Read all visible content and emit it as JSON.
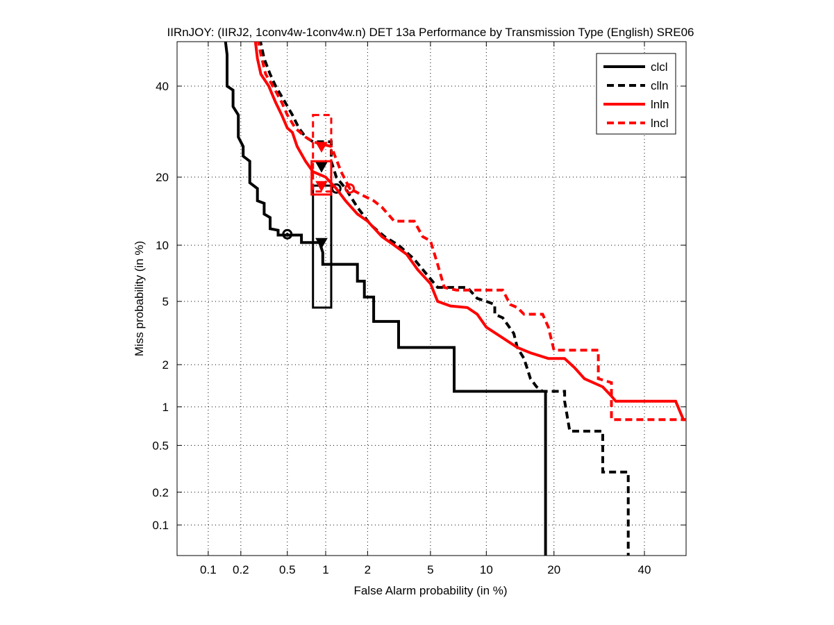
{
  "chart_data": {
    "type": "line",
    "title": "IIRnJOY: (IIRJ2, 1conv4w-1conv4w.n) DET 13a Performance by Transmission Type (English) SRE06",
    "xlabel": "False Alarm probability (in %)",
    "ylabel": "Miss probability (in %)",
    "scale": "normal-deviate (probit)",
    "xlim": [
      0.05,
      55
    ],
    "ylim": [
      0.05,
      55
    ],
    "grid": true,
    "legend_position": "top-right",
    "x_ticks": [
      0.1,
      0.2,
      0.5,
      1,
      2,
      5,
      10,
      20,
      40
    ],
    "x_tick_labels": [
      "0.1",
      "0.2",
      "0.5",
      "1",
      "2",
      "5",
      "10",
      "20",
      "40"
    ],
    "y_ticks": [
      0.1,
      0.2,
      0.5,
      1,
      2,
      5,
      10,
      20,
      40
    ],
    "y_tick_labels": [
      "0.1",
      "0.2",
      "0.5",
      "1",
      "2",
      "5",
      "10",
      "20",
      "40"
    ],
    "series": [
      {
        "name": "clcl",
        "color": "#000000",
        "style": "solid",
        "points": [
          [
            0.14,
            55
          ],
          [
            0.15,
            48
          ],
          [
            0.15,
            40
          ],
          [
            0.17,
            39
          ],
          [
            0.17,
            35
          ],
          [
            0.19,
            33
          ],
          [
            0.19,
            28
          ],
          [
            0.21,
            26
          ],
          [
            0.21,
            24
          ],
          [
            0.24,
            23
          ],
          [
            0.24,
            19
          ],
          [
            0.28,
            18
          ],
          [
            0.28,
            16
          ],
          [
            0.32,
            15.6
          ],
          [
            0.32,
            14
          ],
          [
            0.36,
            13.5
          ],
          [
            0.36,
            12
          ],
          [
            0.42,
            11.8
          ],
          [
            0.42,
            11.2
          ],
          [
            0.5,
            11.2
          ],
          [
            0.65,
            11.2
          ],
          [
            0.65,
            10.3
          ],
          [
            0.9,
            10.3
          ],
          [
            0.95,
            9.2
          ],
          [
            0.95,
            8
          ],
          [
            1.2,
            8
          ],
          [
            1.7,
            8
          ],
          [
            1.7,
            6.5
          ],
          [
            1.9,
            6.5
          ],
          [
            1.9,
            5.3
          ],
          [
            2.2,
            5.3
          ],
          [
            2.2,
            3.8
          ],
          [
            3.2,
            3.8
          ],
          [
            3.2,
            2.6
          ],
          [
            6.8,
            2.6
          ],
          [
            6.8,
            1.3
          ],
          [
            18.5,
            1.3
          ],
          [
            18.5,
            0.05
          ]
        ],
        "operating_point": {
          "x": 1.2,
          "y": 18.0,
          "marker": "circle"
        },
        "act_point": {
          "x": 0.5,
          "y": 11.3,
          "marker": "circle"
        },
        "min_point": {
          "x": 0.93,
          "y": 10.3,
          "marker": "triangle"
        },
        "confidence_box": {
          "x": [
            0.8,
            1.1
          ],
          "y": [
            4.6,
            18.5
          ]
        }
      },
      {
        "name": "clln",
        "color": "#000000",
        "style": "dashed",
        "points": [
          [
            0.28,
            55
          ],
          [
            0.32,
            47
          ],
          [
            0.36,
            43
          ],
          [
            0.4,
            40
          ],
          [
            0.48,
            36
          ],
          [
            0.55,
            33
          ],
          [
            0.62,
            30
          ],
          [
            0.7,
            28
          ],
          [
            0.8,
            27
          ],
          [
            1.1,
            27
          ],
          [
            1.1,
            23
          ],
          [
            1.2,
            20
          ],
          [
            1.4,
            18
          ],
          [
            1.7,
            15
          ],
          [
            2.1,
            12.5
          ],
          [
            2.6,
            11
          ],
          [
            3.2,
            10
          ],
          [
            4,
            8.5
          ],
          [
            4.8,
            7
          ],
          [
            5.5,
            6
          ],
          [
            8,
            6
          ],
          [
            9,
            5.2
          ],
          [
            10,
            5
          ],
          [
            11,
            4.8
          ],
          [
            11,
            4.2
          ],
          [
            12,
            4
          ],
          [
            13.5,
            3.2
          ],
          [
            14,
            2.6
          ],
          [
            15,
            2.2
          ],
          [
            16,
            1.6
          ],
          [
            17,
            1.4
          ],
          [
            18,
            1.3
          ],
          [
            22,
            1.3
          ],
          [
            22,
            1.1
          ],
          [
            23,
            0.65
          ],
          [
            30,
            0.65
          ],
          [
            30,
            0.3
          ],
          [
            36,
            0.3
          ],
          [
            36,
            0.05
          ]
        ],
        "min_point": {
          "x": 0.93,
          "y": 22,
          "marker": "triangle"
        }
      },
      {
        "name": "lnln",
        "color": "#ff0000",
        "style": "solid",
        "points": [
          [
            0.26,
            55
          ],
          [
            0.28,
            47
          ],
          [
            0.3,
            43
          ],
          [
            0.35,
            40
          ],
          [
            0.4,
            36
          ],
          [
            0.45,
            33
          ],
          [
            0.5,
            30
          ],
          [
            0.55,
            29
          ],
          [
            0.6,
            26
          ],
          [
            0.7,
            23
          ],
          [
            0.8,
            21
          ],
          [
            1.0,
            20
          ],
          [
            1.2,
            18
          ],
          [
            1.4,
            16
          ],
          [
            1.7,
            14
          ],
          [
            2.0,
            13
          ],
          [
            2.5,
            11
          ],
          [
            3,
            10
          ],
          [
            3.6,
            9
          ],
          [
            4.2,
            7.5
          ],
          [
            5,
            6.3
          ],
          [
            5.5,
            5
          ],
          [
            6.5,
            4.7
          ],
          [
            8,
            4.6
          ],
          [
            9,
            4.2
          ],
          [
            10,
            3.5
          ],
          [
            12,
            3
          ],
          [
            14,
            2.6
          ],
          [
            16,
            2.4
          ],
          [
            19,
            2.2
          ],
          [
            22,
            2.2
          ],
          [
            24,
            1.9
          ],
          [
            26,
            1.6
          ],
          [
            30,
            1.4
          ],
          [
            32,
            1.2
          ],
          [
            33,
            1.1
          ],
          [
            48,
            1.1
          ],
          [
            50,
            0.8
          ],
          [
            55,
            0.8
          ]
        ],
        "min_point": {
          "x": 0.93,
          "y": 18.5,
          "marker": "triangle"
        },
        "confidence_box": {
          "x": [
            0.78,
            1.1
          ],
          "y": [
            17,
            23
          ]
        }
      },
      {
        "name": "lncl",
        "color": "#ff0000",
        "style": "dashed",
        "points": [
          [
            0.27,
            55
          ],
          [
            0.3,
            48
          ],
          [
            0.33,
            43
          ],
          [
            0.38,
            40
          ],
          [
            0.45,
            36
          ],
          [
            0.5,
            33
          ],
          [
            0.58,
            30
          ],
          [
            0.7,
            28
          ],
          [
            0.8,
            27
          ],
          [
            1.1,
            26
          ],
          [
            1.3,
            21
          ],
          [
            1.5,
            18
          ],
          [
            1.8,
            17
          ],
          [
            2.2,
            16
          ],
          [
            2.5,
            15
          ],
          [
            3,
            13
          ],
          [
            4,
            13
          ],
          [
            4.5,
            11
          ],
          [
            5,
            10.5
          ],
          [
            5.5,
            8
          ],
          [
            6,
            6
          ],
          [
            7,
            5.8
          ],
          [
            9,
            5.8
          ],
          [
            12,
            5.8
          ],
          [
            13,
            4.8
          ],
          [
            14,
            4.6
          ],
          [
            15,
            4.2
          ],
          [
            18,
            4.2
          ],
          [
            19,
            3.5
          ],
          [
            20,
            2.5
          ],
          [
            29,
            2.5
          ],
          [
            29,
            1.6
          ],
          [
            32,
            1.5
          ],
          [
            32,
            0.8
          ],
          [
            55,
            0.8
          ]
        ],
        "min_point": {
          "x": 0.93,
          "y": 26,
          "marker": "triangle"
        },
        "act_point": {
          "x": 1.5,
          "y": 18.0,
          "marker": "circle"
        },
        "confidence_box": {
          "x": [
            0.8,
            1.1
          ],
          "y": [
            17.5,
            33
          ]
        }
      }
    ]
  }
}
